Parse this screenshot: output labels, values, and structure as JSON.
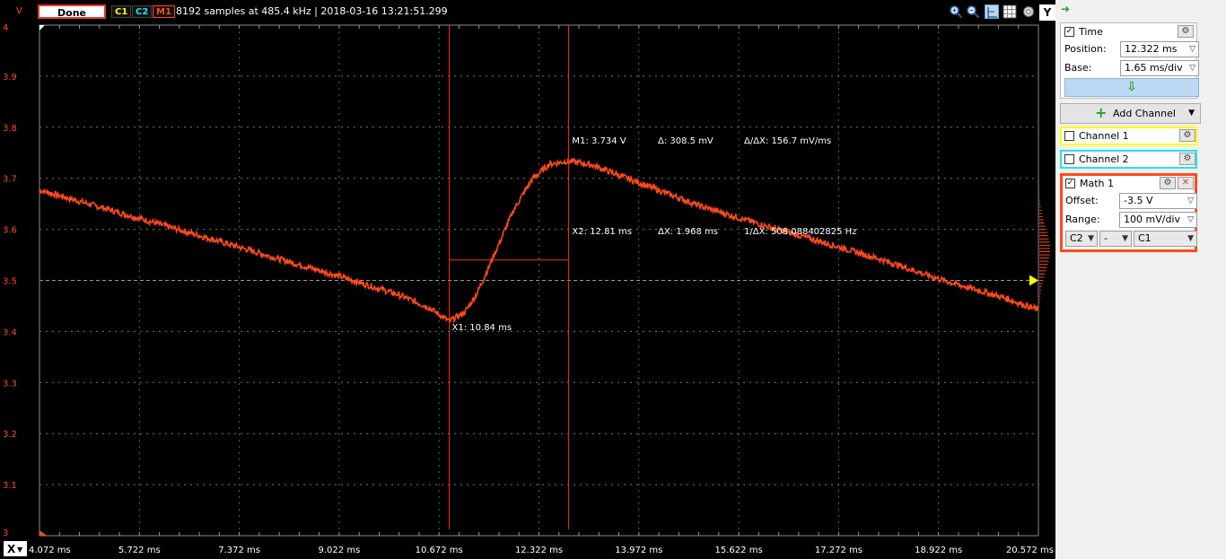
{
  "topbar": {
    "unit_label": "V",
    "done_label": "Done",
    "chips": {
      "c1": "C1",
      "c2": "C2",
      "m1": "M1"
    },
    "status": "8192 samples at 485.4 kHz | 2018-03-16 13:21:51.299",
    "y_button": "Y",
    "icons": [
      "zoom-in-icon",
      "zoom-out-icon",
      "cursor-icon",
      "grid-icon",
      "settings-icon"
    ]
  },
  "colors": {
    "trace": "#ff4a1a",
    "c1": "#ffff00",
    "c2": "#22e6e6",
    "grid": "#7a7a7a",
    "cursor": "#ff2a1a",
    "background": "#000000"
  },
  "chart_data": {
    "type": "line",
    "title": "",
    "xlabel": "",
    "ylabel": "V",
    "xlim": [
      4.072,
      20.572
    ],
    "ylim": [
      3.0,
      4.0
    ],
    "x_ticks": [
      "4.072 ms",
      "5.722 ms",
      "7.372 ms",
      "9.022 ms",
      "10.672 ms",
      "12.322 ms",
      "13.972 ms",
      "15.622 ms",
      "17.272 ms",
      "18.922 ms",
      "20.572 ms"
    ],
    "y_ticks": [
      "4",
      "3.9",
      "3.8",
      "3.7",
      "3.6",
      "3.5",
      "3.4",
      "3.3",
      "3.2",
      "3.1",
      "3"
    ],
    "grid": true,
    "offset_marker": 3.5,
    "series": [
      {
        "x": [
          4.072,
          5.0,
          6.0,
          7.0,
          8.0,
          9.0,
          10.0,
          10.5,
          10.84,
          11.1,
          11.3,
          11.6,
          11.9,
          12.2,
          12.5,
          12.81,
          13.2,
          14.0,
          15.0,
          16.0,
          17.0,
          18.0,
          19.0,
          20.0,
          20.572
        ],
        "y": [
          3.677,
          3.646,
          3.612,
          3.578,
          3.543,
          3.509,
          3.472,
          3.447,
          3.42,
          3.438,
          3.475,
          3.555,
          3.637,
          3.697,
          3.728,
          3.734,
          3.726,
          3.69,
          3.645,
          3.609,
          3.575,
          3.54,
          3.5,
          3.466,
          3.442
        ]
      }
    ]
  },
  "cursors": {
    "x1": {
      "x": 10.84,
      "label": "X1: 10.84 ms"
    },
    "x2": {
      "x": 12.81,
      "label": "X2: 12.81 ms"
    },
    "m1": {
      "y": 3.734,
      "label": "M1: 3.734 V"
    },
    "h_level": 3.54,
    "delta_v": "Δ: 308.5 mV",
    "delta_slope": "Δ/ΔX: 156.7 mV/ms",
    "delta_x": "ΔX: 1.968 ms",
    "inv_delta_x": "1/ΔX: 508.088402825 Hz"
  },
  "xaxis_button": "X",
  "panel": {
    "time": {
      "checked": true,
      "title": "Time",
      "position_label": "Position:",
      "position_value": "12.322 ms",
      "base_label": "Base:",
      "base_value": "1.65 ms/div"
    },
    "add_channel": "Add Channel",
    "channel1": {
      "title": "Channel 1",
      "checked": false
    },
    "channel2": {
      "title": "Channel 2",
      "checked": false
    },
    "math1": {
      "title": "Math 1",
      "checked": true,
      "offset_label": "Offset:",
      "offset_value": "-3.5 V",
      "range_label": "Range:",
      "range_value": "100 mV/div",
      "op_a": "C2",
      "operator": "-",
      "op_b": "C1"
    }
  }
}
